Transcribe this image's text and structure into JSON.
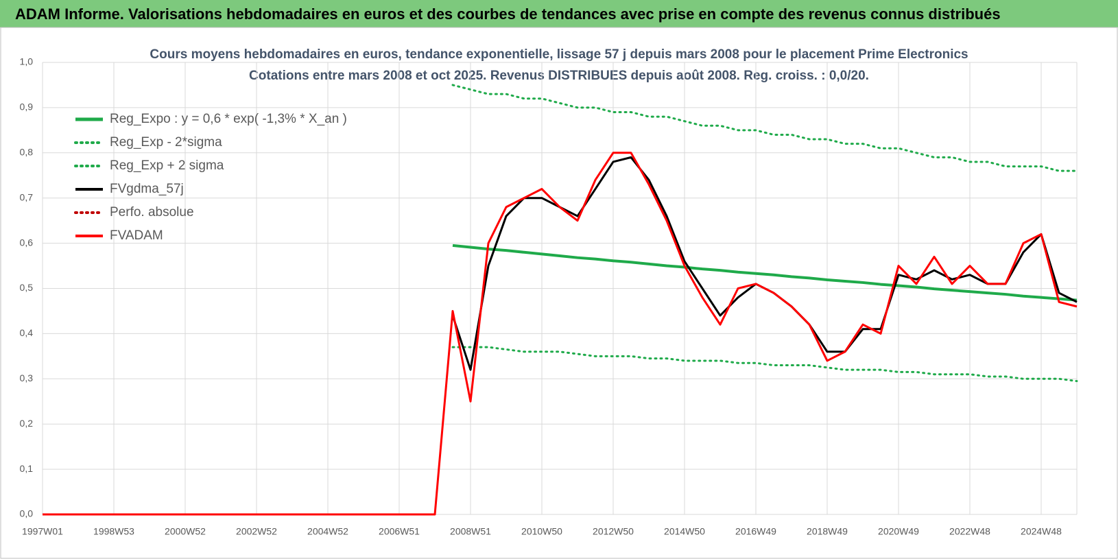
{
  "header": {
    "title": "ADAM Informe. Valorisations hebdomadaires en euros et des courbes de tendances avec prise en compte des revenus connus distribués"
  },
  "chart_data": {
    "type": "line",
    "title": "Cours moyens hebdomadaires en euros, tendance exponentielle, lissage 57 j depuis mars 2008 pour le placement Prime Electronics",
    "subtitle": "Cotations entre mars 2008 et oct 2025. Revenus DISTRIBUES depuis août 2008. Reg. croiss. : 0,0/20.",
    "categories": [
      "1997W01",
      null,
      null,
      null,
      "1998W53",
      null,
      null,
      null,
      "2000W52",
      null,
      null,
      null,
      "2002W52",
      null,
      null,
      null,
      "2004W52",
      null,
      null,
      null,
      "2006W51",
      null,
      null,
      null,
      "2008W51",
      null,
      null,
      null,
      "2010W50",
      null,
      null,
      null,
      "2012W50",
      null,
      null,
      null,
      "2014W50",
      null,
      null,
      null,
      "2016W49",
      null,
      null,
      null,
      "2018W49",
      null,
      null,
      null,
      "2020W49",
      null,
      null,
      null,
      "2022W48",
      null,
      null,
      null,
      "2024W48",
      null,
      null
    ],
    "ylim": [
      0,
      1
    ],
    "yticks": [
      {
        "value": 0,
        "label": "0,0"
      },
      {
        "value": 0.1,
        "label": "0,1"
      },
      {
        "value": 0.2,
        "label": "0,2"
      },
      {
        "value": 0.3,
        "label": "0,3"
      },
      {
        "value": 0.4,
        "label": "0,4"
      },
      {
        "value": 0.5,
        "label": "0,5"
      },
      {
        "value": 0.6,
        "label": "0,6"
      },
      {
        "value": 0.7,
        "label": "0,7"
      },
      {
        "value": 0.8,
        "label": "0,8"
      },
      {
        "value": 0.9,
        "label": "0,9"
      },
      {
        "value": 1,
        "label": "1,0"
      }
    ],
    "grid": true,
    "series": [
      {
        "name": "Reg_Expo : y = 0,6 * exp( -1,3% *  X_an )",
        "color": "#1faa4a",
        "style": "solid",
        "width": 4,
        "values": [
          null,
          null,
          null,
          null,
          null,
          null,
          null,
          null,
          null,
          null,
          null,
          null,
          null,
          null,
          null,
          null,
          null,
          null,
          null,
          null,
          null,
          null,
          null,
          0.595,
          0.591,
          0.587,
          0.584,
          0.58,
          0.576,
          0.572,
          0.568,
          0.565,
          0.561,
          0.558,
          0.554,
          0.55,
          0.547,
          0.543,
          0.54,
          0.536,
          0.533,
          0.53,
          0.526,
          0.523,
          0.519,
          0.516,
          0.513,
          0.509,
          0.506,
          0.503,
          0.499,
          0.496,
          0.493,
          0.49,
          0.487,
          0.483,
          0.48,
          0.477,
          0.474
        ]
      },
      {
        "name": "Reg_Exp - 2*sigma",
        "color": "#1faa4a",
        "style": "dotted",
        "width": 3,
        "values": [
          null,
          null,
          null,
          null,
          null,
          null,
          null,
          null,
          null,
          null,
          null,
          null,
          null,
          null,
          null,
          null,
          null,
          null,
          null,
          null,
          null,
          null,
          null,
          0.37,
          0.37,
          0.37,
          0.365,
          0.36,
          0.36,
          0.36,
          0.355,
          0.35,
          0.35,
          0.35,
          0.345,
          0.345,
          0.34,
          0.34,
          0.34,
          0.335,
          0.335,
          0.33,
          0.33,
          0.33,
          0.325,
          0.32,
          0.32,
          0.32,
          0.315,
          0.315,
          0.31,
          0.31,
          0.31,
          0.305,
          0.305,
          0.3,
          0.3,
          0.3,
          0.295
        ]
      },
      {
        "name": "Reg_Exp + 2 sigma",
        "color": "#1faa4a",
        "style": "dotted",
        "width": 3,
        "values": [
          null,
          null,
          null,
          null,
          null,
          null,
          null,
          null,
          null,
          null,
          null,
          null,
          null,
          null,
          null,
          null,
          null,
          null,
          null,
          null,
          null,
          null,
          null,
          0.95,
          0.94,
          0.93,
          0.93,
          0.92,
          0.92,
          0.91,
          0.9,
          0.9,
          0.89,
          0.89,
          0.88,
          0.88,
          0.87,
          0.86,
          0.86,
          0.85,
          0.85,
          0.84,
          0.84,
          0.83,
          0.83,
          0.82,
          0.82,
          0.81,
          0.81,
          0.8,
          0.79,
          0.79,
          0.78,
          0.78,
          0.77,
          0.77,
          0.77,
          0.76,
          0.76
        ]
      },
      {
        "name": "FVgdma_57j",
        "color": "#000000",
        "style": "solid",
        "width": 3,
        "values": [
          null,
          null,
          null,
          null,
          null,
          null,
          null,
          null,
          null,
          null,
          null,
          null,
          null,
          null,
          null,
          null,
          null,
          null,
          null,
          null,
          null,
          null,
          null,
          0.44,
          0.32,
          0.55,
          0.66,
          0.7,
          0.7,
          0.68,
          0.66,
          0.72,
          0.78,
          0.79,
          0.74,
          0.66,
          0.56,
          0.5,
          0.44,
          0.48,
          0.51,
          0.49,
          0.46,
          0.42,
          0.36,
          0.36,
          0.41,
          0.41,
          0.53,
          0.52,
          0.54,
          0.52,
          0.53,
          0.51,
          0.51,
          0.58,
          0.62,
          0.49,
          0.47
        ]
      },
      {
        "name": "Perfo. absolue",
        "color": "#c00000",
        "style": "dotted",
        "width": 3,
        "values": [
          null,
          null,
          null,
          null,
          null,
          null,
          null,
          null,
          null,
          null,
          null,
          null,
          null,
          null,
          null,
          null,
          null,
          null,
          null,
          null,
          null,
          null,
          null,
          null,
          null,
          null,
          null,
          null,
          null,
          null,
          null,
          null,
          null,
          null,
          null,
          null,
          null,
          null,
          null,
          null,
          null,
          null,
          null,
          null,
          null,
          null,
          null,
          null,
          null,
          null,
          null,
          null,
          null,
          null,
          null,
          null,
          null,
          null,
          null
        ]
      },
      {
        "name": "FVADAM",
        "color": "#ff0000",
        "style": "solid",
        "width": 3,
        "values": [
          0,
          0,
          0,
          0,
          0,
          0,
          0,
          0,
          0,
          0,
          0,
          0,
          0,
          0,
          0,
          0,
          0,
          0,
          0,
          0,
          0,
          0,
          0,
          0.45,
          0.25,
          0.6,
          0.68,
          0.7,
          0.72,
          0.68,
          0.65,
          0.74,
          0.8,
          0.8,
          0.73,
          0.65,
          0.55,
          0.48,
          0.42,
          0.5,
          0.51,
          0.49,
          0.46,
          0.42,
          0.34,
          0.36,
          0.42,
          0.4,
          0.55,
          0.51,
          0.57,
          0.51,
          0.55,
          0.51,
          0.51,
          0.6,
          0.62,
          0.47,
          0.46
        ]
      }
    ]
  }
}
